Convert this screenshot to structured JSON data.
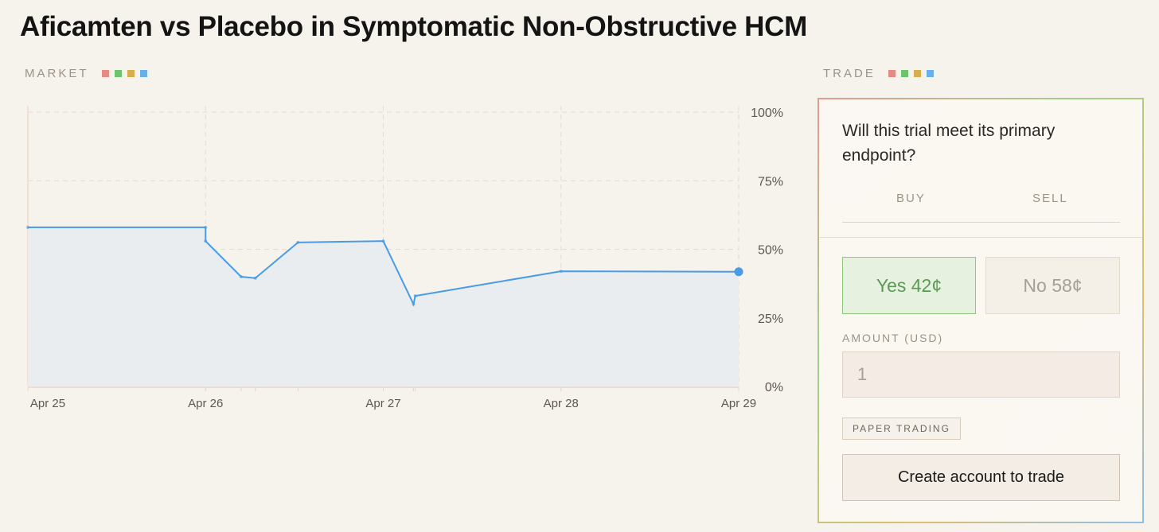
{
  "page": {
    "title": "Aficamten vs Placebo in Symptomatic Non-Obstructive HCM"
  },
  "market": {
    "label": "MARKET",
    "dot_colors": [
      "#e68a84",
      "#6cc46c",
      "#d7ad4e",
      "#6ab0e8"
    ]
  },
  "trade": {
    "label": "TRADE",
    "dot_colors": [
      "#e68a84",
      "#6cc46c",
      "#d7ad4e",
      "#6ab0e8"
    ],
    "question": "Will this trial meet its primary endpoint?",
    "tabs": {
      "buy": "BUY",
      "sell": "SELL"
    },
    "yes_label": "Yes 42¢",
    "no_label": "No 58¢",
    "amount_label": "AMOUNT (USD)",
    "amount_placeholder": "1",
    "paper_trading_label": "PAPER TRADING",
    "cta_label": "Create account to trade"
  },
  "chart_data": {
    "type": "area",
    "x_tick_labels": [
      {
        "x": 0.0,
        "label": "Apr 25"
      },
      {
        "x": 1.0,
        "label": "Apr 26"
      },
      {
        "x": 2.0,
        "label": "Apr 27"
      },
      {
        "x": 3.0,
        "label": "Apr 28"
      },
      {
        "x": 4.0,
        "label": "Apr 29"
      }
    ],
    "y_tick_labels": [
      "100%",
      "75%",
      "50%",
      "25%",
      "0%"
    ],
    "y_ticks": [
      100,
      75,
      50,
      25,
      0
    ],
    "ylim": [
      0,
      100
    ],
    "grid": true,
    "line_color": "#4a9be6",
    "fill_color": "#e9ecef",
    "series": [
      {
        "points": [
          {
            "x": 0.0,
            "y": 58
          },
          {
            "x": 1.0,
            "y": 58
          },
          {
            "x": 1.0,
            "y": 53
          },
          {
            "x": 1.2,
            "y": 40
          },
          {
            "x": 1.28,
            "y": 39.5
          },
          {
            "x": 1.52,
            "y": 52.5
          },
          {
            "x": 2.0,
            "y": 53
          },
          {
            "x": 2.17,
            "y": 30
          },
          {
            "x": 2.18,
            "y": 33
          },
          {
            "x": 3.0,
            "y": 42
          },
          {
            "x": 4.0,
            "y": 41.8
          }
        ]
      }
    ]
  }
}
